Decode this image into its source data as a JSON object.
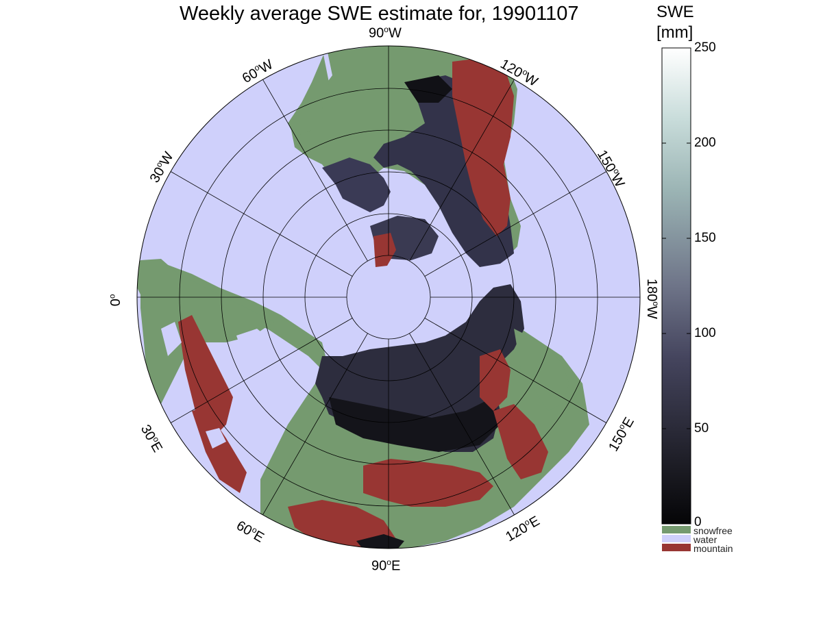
{
  "title": "Weekly average SWE estimate for, 19901107",
  "colorbar": {
    "label_line1": "SWE",
    "label_line2": "[mm]",
    "ticks": [
      "250",
      "200",
      "150",
      "100",
      "50",
      "0"
    ],
    "range": [
      0,
      250
    ]
  },
  "legend": {
    "items": [
      {
        "label": "snowfree",
        "color": "#759a6f"
      },
      {
        "label": "water",
        "color": "#cfd0fb"
      },
      {
        "label": "mountain",
        "color": "#983633"
      }
    ]
  },
  "longitude_labels": {
    "lon_90w": {
      "text": "90",
      "suffix": "W"
    },
    "lon_120w": {
      "text": "120",
      "suffix": "W"
    },
    "lon_150w": {
      "text": "150",
      "suffix": "W"
    },
    "lon_180w": {
      "text": "180",
      "suffix": "W"
    },
    "lon_150e": {
      "text": "150",
      "suffix": "E"
    },
    "lon_120e": {
      "text": "120",
      "suffix": "E"
    },
    "lon_90e": {
      "text": "90",
      "suffix": "E"
    },
    "lon_60e": {
      "text": "60",
      "suffix": "E"
    },
    "lon_30e": {
      "text": "30",
      "suffix": "E"
    },
    "lon_0": {
      "text": "0",
      "suffix": ""
    },
    "lon_30w": {
      "text": "30",
      "suffix": "W"
    },
    "lon_60w": {
      "text": "60",
      "suffix": "W"
    }
  },
  "colors": {
    "water": "#cfd0fb",
    "snowfree": "#759a6f",
    "mountain": "#983633",
    "swe_low": "#050507",
    "swe_mid": "#4b4b66",
    "swe_high": "#ffffff"
  }
}
